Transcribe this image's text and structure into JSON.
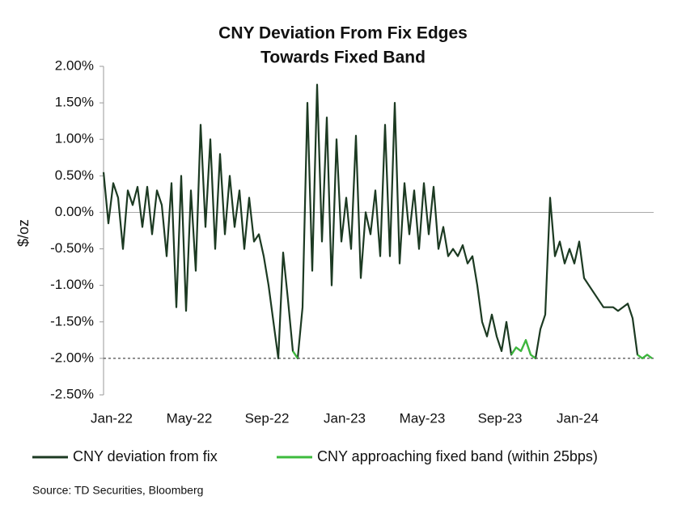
{
  "chart_data": {
    "type": "line",
    "title": "CNY Deviation From Fix Edges",
    "subtitle": "Towards Fixed Band",
    "y_label": "$/oz",
    "source": "Source: TD Securities, Bloomberg",
    "categories": [
      "Jan-22",
      null,
      null,
      null,
      null,
      null,
      null,
      null,
      null,
      null,
      null,
      null,
      null,
      null,
      null,
      null,
      "May-22",
      null,
      null,
      null,
      null,
      null,
      null,
      null,
      null,
      null,
      null,
      null,
      null,
      null,
      null,
      null,
      "Sep-22",
      null,
      null,
      null,
      null,
      null,
      null,
      null,
      null,
      null,
      null,
      null,
      null,
      null,
      null,
      null,
      "Jan-23",
      null,
      null,
      null,
      null,
      null,
      null,
      null,
      null,
      null,
      null,
      null,
      null,
      null,
      null,
      null,
      "May-23",
      null,
      null,
      null,
      null,
      null,
      null,
      null,
      null,
      null,
      null,
      null,
      null,
      null,
      null,
      null,
      "Sep-23",
      null,
      null,
      null,
      null,
      null,
      null,
      null,
      null,
      null,
      null,
      null,
      null,
      null,
      null,
      null,
      "Jan-24",
      null,
      null,
      null,
      null,
      null,
      null,
      null,
      null,
      null,
      null,
      null,
      null,
      null,
      null,
      null,
      null,
      null
    ],
    "series": [
      {
        "name": "CNY deviation from fix",
        "color": "#1c3a22",
        "values": [
          0.55,
          -0.15,
          0.4,
          0.2,
          -0.5,
          0.3,
          0.1,
          0.35,
          -0.2,
          0.35,
          -0.3,
          0.3,
          0.1,
          -0.6,
          0.4,
          -1.3,
          0.5,
          -1.35,
          0.3,
          -0.8,
          1.2,
          -0.2,
          1.0,
          -0.5,
          0.8,
          -0.3,
          0.5,
          -0.2,
          0.3,
          -0.5,
          0.2,
          -0.4,
          -0.3,
          -0.6,
          -1.0,
          -1.5,
          -2.0,
          -0.55,
          -1.2,
          -1.9,
          -2.0,
          -1.3,
          1.5,
          -0.8,
          1.75,
          -0.4,
          1.3,
          -1.0,
          1.0,
          -0.4,
          0.2,
          -0.5,
          1.05,
          -0.9,
          0.0,
          -0.3,
          0.3,
          -0.6,
          1.2,
          -0.6,
          1.5,
          -0.7,
          0.4,
          -0.3,
          0.3,
          -0.5,
          0.4,
          -0.3,
          0.35,
          -0.5,
          -0.2,
          -0.6,
          -0.5,
          -0.6,
          -0.45,
          -0.7,
          -0.6,
          -1.0,
          -1.5,
          -1.7,
          -1.4,
          -1.7,
          -1.9,
          -1.5,
          -1.95,
          -1.85,
          -1.9,
          -1.75,
          -1.95,
          -2.0,
          -1.6,
          -1.4,
          0.2,
          -0.6,
          -0.4,
          -0.7,
          -0.5,
          -0.7,
          -0.4,
          -0.9,
          -1.0,
          -1.1,
          -1.2,
          -1.3,
          -1.3,
          -1.3,
          -1.35,
          -1.3,
          -1.25,
          -1.45,
          -1.95,
          -2.0,
          -1.95,
          -2.0
        ]
      },
      {
        "name": "CNY approaching fixed band (within 25bps)",
        "color": "#3dbb3d",
        "values": [
          null,
          null,
          null,
          null,
          null,
          null,
          null,
          null,
          null,
          null,
          null,
          null,
          null,
          null,
          null,
          null,
          null,
          null,
          null,
          null,
          null,
          null,
          null,
          null,
          null,
          null,
          null,
          null,
          null,
          null,
          null,
          null,
          null,
          null,
          null,
          null,
          null,
          null,
          null,
          -1.9,
          -2.0,
          null,
          null,
          null,
          null,
          null,
          null,
          null,
          null,
          null,
          null,
          null,
          null,
          null,
          null,
          null,
          null,
          null,
          null,
          null,
          null,
          null,
          null,
          null,
          null,
          null,
          null,
          null,
          null,
          null,
          null,
          null,
          null,
          null,
          null,
          null,
          null,
          null,
          null,
          null,
          null,
          null,
          null,
          null,
          -1.95,
          -1.85,
          -1.9,
          -1.75,
          -1.95,
          -2.0,
          null,
          null,
          null,
          null,
          null,
          null,
          null,
          null,
          null,
          null,
          null,
          null,
          null,
          null,
          null,
          null,
          null,
          null,
          null,
          null,
          -1.95,
          -2.0,
          -1.95,
          -2.0
        ]
      }
    ],
    "ylim": [
      -2.5,
      2
    ],
    "yticks": [
      {
        "value": -2.5,
        "label": "-2.50%"
      },
      {
        "value": -2,
        "label": "-2.00%"
      },
      {
        "value": -1.5,
        "label": "-1.50%"
      },
      {
        "value": -1,
        "label": "-1.00%"
      },
      {
        "value": -0.5,
        "label": "-0.50%"
      },
      {
        "value": 0,
        "label": "0.00%"
      },
      {
        "value": 0.5,
        "label": "0.50%"
      },
      {
        "value": 1,
        "label": "1.00%"
      },
      {
        "value": 1.5,
        "label": "1.50%"
      },
      {
        "value": 2,
        "label": "2.00%"
      }
    ],
    "reference_line": -2
  }
}
